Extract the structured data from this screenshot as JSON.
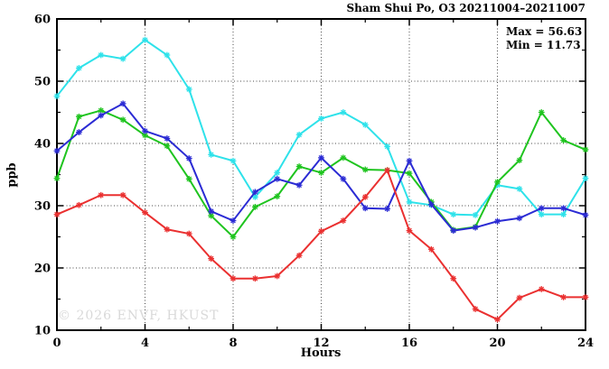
{
  "title": "Sham Shui Po, O3 20211004–20211007",
  "annotations": {
    "max_label": "Max = 56.63",
    "min_label": "Min = 11.73"
  },
  "watermark": "© 2026 ENVF, HKUST",
  "chart_data": {
    "type": "line",
    "title": "Sham Shui Po, O3 20211004–20211007",
    "xlabel": "Hours",
    "ylabel": "ppb",
    "xlim": [
      0,
      24
    ],
    "ylim": [
      10,
      60
    ],
    "x_major_ticks": [
      0,
      4,
      8,
      12,
      16,
      20,
      24
    ],
    "x_minor_ticks": [
      2,
      6,
      10,
      14,
      18,
      22
    ],
    "y_major_ticks": [
      10,
      20,
      30,
      40,
      50,
      60
    ],
    "y_minor_ticks": [
      15,
      25,
      35,
      45,
      55
    ],
    "grid": {
      "style": "dotted",
      "x_at": [
        4,
        8,
        12,
        16,
        20
      ],
      "y_at": [
        20,
        30,
        40,
        50
      ]
    },
    "legend_position": "none",
    "marker": "star",
    "stats": {
      "max": 56.63,
      "min": 11.73
    },
    "x": [
      0,
      1,
      2,
      3,
      4,
      5,
      6,
      7,
      8,
      9,
      10,
      11,
      12,
      13,
      14,
      15,
      16,
      17,
      18,
      19,
      20,
      21,
      22,
      23,
      24
    ],
    "series": [
      {
        "name": "series-cyan",
        "color": "#2ee2ea",
        "values": [
          47.6,
          52.1,
          54.2,
          53.6,
          56.63,
          54.2,
          48.7,
          38.2,
          37.2,
          31.4,
          35.3,
          41.4,
          44.0,
          45.0,
          43.0,
          39.5,
          30.6,
          30.1,
          28.6,
          28.5,
          33.3,
          32.7,
          28.6,
          28.6,
          34.4
        ]
      },
      {
        "name": "series-green",
        "color": "#1fc41f",
        "values": [
          34.4,
          44.3,
          45.3,
          43.8,
          41.3,
          39.6,
          34.3,
          28.4,
          25.0,
          29.8,
          31.5,
          36.3,
          35.3,
          37.7,
          35.8,
          35.7,
          35.2,
          30.6,
          26.1,
          26.6,
          33.8,
          37.3,
          45.0,
          40.5,
          39.0
        ]
      },
      {
        "name": "series-blue",
        "color": "#2b2bd4",
        "values": [
          38.8,
          41.8,
          44.5,
          46.4,
          42.0,
          40.8,
          37.6,
          29.1,
          27.6,
          32.2,
          34.3,
          33.3,
          37.7,
          34.3,
          29.6,
          29.5,
          37.2,
          30.2,
          26.0,
          26.5,
          27.5,
          28.0,
          29.6,
          29.6,
          28.5
        ]
      },
      {
        "name": "series-red",
        "color": "#ea3030",
        "values": [
          28.6,
          30.1,
          31.7,
          31.7,
          28.9,
          26.2,
          25.5,
          21.5,
          18.3,
          18.3,
          18.7,
          22.0,
          25.9,
          27.6,
          31.4,
          35.7,
          26.0,
          23.0,
          18.3,
          13.4,
          11.73,
          15.2,
          16.6,
          15.3,
          15.3
        ]
      }
    ]
  }
}
